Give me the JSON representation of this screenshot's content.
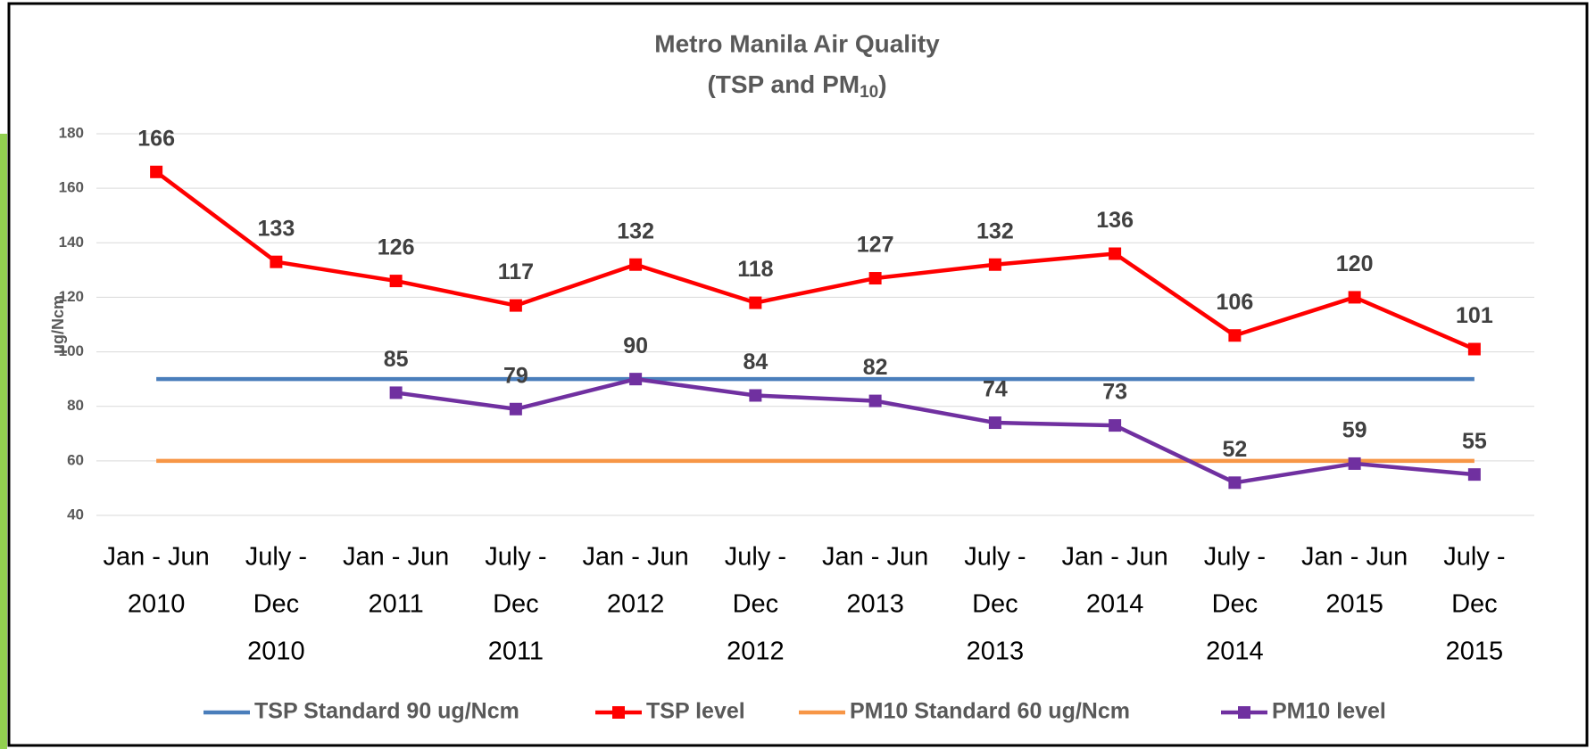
{
  "chart_data": {
    "type": "line",
    "title": "Metro Manila Air Quality",
    "subtitle": [
      "(TSP and PM",
      "10",
      ")"
    ],
    "y_label": "μg/Ncm",
    "categories": [
      [
        "Jan - Jun",
        "2010"
      ],
      [
        "July -",
        "Dec",
        "2010"
      ],
      [
        "Jan - Jun",
        "2011"
      ],
      [
        "July -",
        "Dec",
        "2011"
      ],
      [
        "Jan - Jun",
        "2012"
      ],
      [
        "July -",
        "Dec",
        "2012"
      ],
      [
        "Jan - Jun",
        "2013"
      ],
      [
        "July -",
        "Dec",
        "2013"
      ],
      [
        "Jan - Jun",
        "2014"
      ],
      [
        "July -",
        "Dec",
        "2014"
      ],
      [
        "Jan - Jun",
        "2015"
      ],
      [
        "July -",
        "Dec",
        "2015"
      ]
    ],
    "series": [
      {
        "name": "TSP Standard 90 ug/Ncm",
        "color": "#4a7ebb",
        "marker": false,
        "labels": false,
        "values": [
          90,
          90,
          90,
          90,
          90,
          90,
          90,
          90,
          90,
          90,
          90,
          90
        ]
      },
      {
        "name": "TSP level",
        "color": "#ff0000",
        "marker": true,
        "labels": true,
        "values": [
          166,
          133,
          126,
          117,
          132,
          118,
          127,
          132,
          136,
          106,
          120,
          101
        ]
      },
      {
        "name": "PM10 Standard 60 ug/Ncm",
        "color": "#f79646",
        "marker": false,
        "labels": false,
        "values": [
          60,
          60,
          60,
          60,
          60,
          60,
          60,
          60,
          60,
          60,
          60,
          60
        ]
      },
      {
        "name": "PM10 level",
        "color": "#7030a0",
        "marker": true,
        "labels": true,
        "values": [
          null,
          null,
          85,
          79,
          90,
          84,
          82,
          74,
          73,
          52,
          59,
          55
        ]
      }
    ],
    "ylim": [
      40,
      180
    ],
    "yticks": [
      40,
      60,
      80,
      100,
      120,
      140,
      160,
      180
    ],
    "grid": true,
    "legend": "bottom"
  }
}
